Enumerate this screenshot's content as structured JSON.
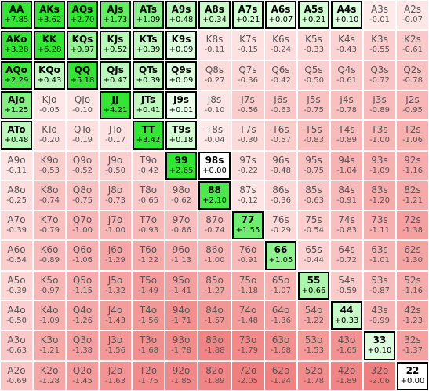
{
  "chart_data": {
    "type": "heatmap",
    "title": "",
    "ranks": [
      "A",
      "K",
      "Q",
      "J",
      "T",
      "9",
      "8",
      "7",
      "6",
      "5",
      "4",
      "3",
      "2"
    ],
    "color_scale": {
      "positive_max": "#33e633",
      "positive_min": "#ecffec",
      "zero": "#ffffff",
      "negative_min": "#ffeaea",
      "negative_max": "#f07f7f"
    },
    "rows": [
      [
        {
          "hand": "AA",
          "ev": "+7.85"
        },
        {
          "hand": "AKs",
          "ev": "+3.62"
        },
        {
          "hand": "AQs",
          "ev": "+2.70"
        },
        {
          "hand": "AJs",
          "ev": "+1.73"
        },
        {
          "hand": "ATs",
          "ev": "+1.09"
        },
        {
          "hand": "A9s",
          "ev": "+0.48"
        },
        {
          "hand": "A8s",
          "ev": "+0.34"
        },
        {
          "hand": "A7s",
          "ev": "+0.21"
        },
        {
          "hand": "A6s",
          "ev": "+0.07"
        },
        {
          "hand": "A5s",
          "ev": "+0.21"
        },
        {
          "hand": "A4s",
          "ev": "+0.10"
        },
        {
          "hand": "A3s",
          "ev": "-0.01"
        },
        {
          "hand": "A2s",
          "ev": "-0.07"
        }
      ],
      [
        {
          "hand": "AKo",
          "ev": "+3.28"
        },
        {
          "hand": "KK",
          "ev": "+6.28"
        },
        {
          "hand": "KQs",
          "ev": "+0.97"
        },
        {
          "hand": "KJs",
          "ev": "+0.52"
        },
        {
          "hand": "KTs",
          "ev": "+0.39"
        },
        {
          "hand": "K9s",
          "ev": "+0.09"
        },
        {
          "hand": "K8s",
          "ev": "-0.11"
        },
        {
          "hand": "K7s",
          "ev": "-0.15"
        },
        {
          "hand": "K6s",
          "ev": "-0.24"
        },
        {
          "hand": "K5s",
          "ev": "-0.33"
        },
        {
          "hand": "K4s",
          "ev": "-0.43"
        },
        {
          "hand": "K3s",
          "ev": "-0.55"
        },
        {
          "hand": "K2s",
          "ev": "-0.61"
        }
      ],
      [
        {
          "hand": "AQo",
          "ev": "+2.29"
        },
        {
          "hand": "KQo",
          "ev": "+0.43"
        },
        {
          "hand": "QQ",
          "ev": "+5.18"
        },
        {
          "hand": "QJs",
          "ev": "+0.47"
        },
        {
          "hand": "QTs",
          "ev": "+0.39"
        },
        {
          "hand": "Q9s",
          "ev": "+0.09"
        },
        {
          "hand": "Q8s",
          "ev": "-0.27"
        },
        {
          "hand": "Q7s",
          "ev": "-0.36"
        },
        {
          "hand": "Q6s",
          "ev": "-0.42"
        },
        {
          "hand": "Q5s",
          "ev": "-0.50"
        },
        {
          "hand": "Q4s",
          "ev": "-0.61"
        },
        {
          "hand": "Q3s",
          "ev": "-0.72"
        },
        {
          "hand": "Q2s",
          "ev": "-0.78"
        }
      ],
      [
        {
          "hand": "AJo",
          "ev": "+1.25"
        },
        {
          "hand": "KJo",
          "ev": "-0.05"
        },
        {
          "hand": "QJo",
          "ev": "-0.10"
        },
        {
          "hand": "JJ",
          "ev": "+4.21"
        },
        {
          "hand": "JTs",
          "ev": "+0.41"
        },
        {
          "hand": "J9s",
          "ev": "+0.01"
        },
        {
          "hand": "J8s",
          "ev": "-0.10"
        },
        {
          "hand": "J7s",
          "ev": "-0.56"
        },
        {
          "hand": "J6s",
          "ev": "-0.63"
        },
        {
          "hand": "J5s",
          "ev": "-0.75"
        },
        {
          "hand": "J4s",
          "ev": "-0.78"
        },
        {
          "hand": "J3s",
          "ev": "-0.89"
        },
        {
          "hand": "J2s",
          "ev": "-0.95"
        }
      ],
      [
        {
          "hand": "ATo",
          "ev": "+0.48"
        },
        {
          "hand": "KTo",
          "ev": "-0.20"
        },
        {
          "hand": "QTo",
          "ev": "-0.19"
        },
        {
          "hand": "JTo",
          "ev": "-0.17"
        },
        {
          "hand": "TT",
          "ev": "+3.42"
        },
        {
          "hand": "T9s",
          "ev": "+0.18"
        },
        {
          "hand": "T8s",
          "ev": "-0.04"
        },
        {
          "hand": "T7s",
          "ev": "-0.30"
        },
        {
          "hand": "T6s",
          "ev": "-0.57"
        },
        {
          "hand": "T5s",
          "ev": "-0.83"
        },
        {
          "hand": "T4s",
          "ev": "-0.89"
        },
        {
          "hand": "T3s",
          "ev": "-1.00"
        },
        {
          "hand": "T2s",
          "ev": "-1.06"
        }
      ],
      [
        {
          "hand": "A9o",
          "ev": "-0.11"
        },
        {
          "hand": "K9o",
          "ev": "-0.53"
        },
        {
          "hand": "Q9o",
          "ev": "-0.52"
        },
        {
          "hand": "J9o",
          "ev": "-0.50"
        },
        {
          "hand": "T9o",
          "ev": "-0.42"
        },
        {
          "hand": "99",
          "ev": "+2.65"
        },
        {
          "hand": "98s",
          "ev": "+0.00"
        },
        {
          "hand": "97s",
          "ev": "-0.22"
        },
        {
          "hand": "96s",
          "ev": "-0.48"
        },
        {
          "hand": "95s",
          "ev": "-0.75"
        },
        {
          "hand": "94s",
          "ev": "-1.04"
        },
        {
          "hand": "93s",
          "ev": "-1.09"
        },
        {
          "hand": "92s",
          "ev": "-1.16"
        }
      ],
      [
        {
          "hand": "A8o",
          "ev": "-0.25"
        },
        {
          "hand": "K8o",
          "ev": "-0.74"
        },
        {
          "hand": "Q8o",
          "ev": "-0.75"
        },
        {
          "hand": "J8o",
          "ev": "-0.73"
        },
        {
          "hand": "T8o",
          "ev": "-0.65"
        },
        {
          "hand": "98o",
          "ev": "-0.62"
        },
        {
          "hand": "88",
          "ev": "+2.10"
        },
        {
          "hand": "87s",
          "ev": "-0.12"
        },
        {
          "hand": "86s",
          "ev": "-0.36"
        },
        {
          "hand": "85s",
          "ev": "-0.63"
        },
        {
          "hand": "84s",
          "ev": "-0.91"
        },
        {
          "hand": "83s",
          "ev": "-1.20"
        },
        {
          "hand": "82s",
          "ev": "-1.21"
        }
      ],
      [
        {
          "hand": "A7o",
          "ev": "-0.39"
        },
        {
          "hand": "K7o",
          "ev": "-0.79"
        },
        {
          "hand": "Q7o",
          "ev": "-1.00"
        },
        {
          "hand": "J7o",
          "ev": "-1.00"
        },
        {
          "hand": "T7o",
          "ev": "-0.93"
        },
        {
          "hand": "97o",
          "ev": "-0.86"
        },
        {
          "hand": "87o",
          "ev": "-0.74"
        },
        {
          "hand": "77",
          "ev": "+1.55"
        },
        {
          "hand": "76s",
          "ev": "-0.29"
        },
        {
          "hand": "75s",
          "ev": "-0.54"
        },
        {
          "hand": "74s",
          "ev": "-0.83"
        },
        {
          "hand": "73s",
          "ev": "-1.11"
        },
        {
          "hand": "72s",
          "ev": "-1.38"
        }
      ],
      [
        {
          "hand": "A6o",
          "ev": "-0.54"
        },
        {
          "hand": "K6o",
          "ev": "-0.89"
        },
        {
          "hand": "Q6o",
          "ev": "-1.06"
        },
        {
          "hand": "J6o",
          "ev": "-1.29"
        },
        {
          "hand": "T6o",
          "ev": "-1.22"
        },
        {
          "hand": "96o",
          "ev": "-1.13"
        },
        {
          "hand": "86o",
          "ev": "-1.00"
        },
        {
          "hand": "76o",
          "ev": "-0.91"
        },
        {
          "hand": "66",
          "ev": "+1.05"
        },
        {
          "hand": "65s",
          "ev": "-0.44"
        },
        {
          "hand": "64s",
          "ev": "-0.72"
        },
        {
          "hand": "63s",
          "ev": "-1.01"
        },
        {
          "hand": "62s",
          "ev": "-1.30"
        }
      ],
      [
        {
          "hand": "A5o",
          "ev": "-0.39"
        },
        {
          "hand": "K5o",
          "ev": "-0.97"
        },
        {
          "hand": "Q5o",
          "ev": "-1.15"
        },
        {
          "hand": "J5o",
          "ev": "-1.32"
        },
        {
          "hand": "T5o",
          "ev": "-1.49"
        },
        {
          "hand": "95o",
          "ev": "-1.41"
        },
        {
          "hand": "85o",
          "ev": "-1.27"
        },
        {
          "hand": "75o",
          "ev": "-1.18"
        },
        {
          "hand": "65o",
          "ev": "-1.07"
        },
        {
          "hand": "55",
          "ev": "+0.66"
        },
        {
          "hand": "54s",
          "ev": "-0.59"
        },
        {
          "hand": "53s",
          "ev": "-0.87"
        },
        {
          "hand": "52s",
          "ev": "-1.16"
        }
      ],
      [
        {
          "hand": "A4o",
          "ev": "-0.50"
        },
        {
          "hand": "K4o",
          "ev": "-1.09"
        },
        {
          "hand": "Q4o",
          "ev": "-1.26"
        },
        {
          "hand": "J4o",
          "ev": "-1.43"
        },
        {
          "hand": "T4o",
          "ev": "-1.56"
        },
        {
          "hand": "94o",
          "ev": "-1.71"
        },
        {
          "hand": "84o",
          "ev": "-1.57"
        },
        {
          "hand": "74o",
          "ev": "-1.48"
        },
        {
          "hand": "64o",
          "ev": "-1.36"
        },
        {
          "hand": "54o",
          "ev": "-1.22"
        },
        {
          "hand": "44",
          "ev": "+0.33"
        },
        {
          "hand": "43s",
          "ev": "-0.99"
        },
        {
          "hand": "42s",
          "ev": "-1.23"
        }
      ],
      [
        {
          "hand": "A3o",
          "ev": "-0.63"
        },
        {
          "hand": "K3o",
          "ev": "-1.21"
        },
        {
          "hand": "Q3o",
          "ev": "-1.38"
        },
        {
          "hand": "J3o",
          "ev": "-1.56"
        },
        {
          "hand": "T3o",
          "ev": "-1.68"
        },
        {
          "hand": "93o",
          "ev": "-1.78"
        },
        {
          "hand": "83o",
          "ev": "-1.88"
        },
        {
          "hand": "73o",
          "ev": "-1.79"
        },
        {
          "hand": "63o",
          "ev": "-1.68"
        },
        {
          "hand": "53o",
          "ev": "-1.53"
        },
        {
          "hand": "43o",
          "ev": "-1.65"
        },
        {
          "hand": "33",
          "ev": "+0.10"
        },
        {
          "hand": "32s",
          "ev": "-1.37"
        }
      ],
      [
        {
          "hand": "A2o",
          "ev": "-0.69"
        },
        {
          "hand": "K2o",
          "ev": "-1.28"
        },
        {
          "hand": "Q2o",
          "ev": "-1.45"
        },
        {
          "hand": "J2o",
          "ev": "-1.63"
        },
        {
          "hand": "T2o",
          "ev": "-1.75"
        },
        {
          "hand": "92o",
          "ev": "-1.85"
        },
        {
          "hand": "82o",
          "ev": "-1.89"
        },
        {
          "hand": "72o",
          "ev": "-2.05"
        },
        {
          "hand": "62o",
          "ev": "-1.94"
        },
        {
          "hand": "52o",
          "ev": "-1.78"
        },
        {
          "hand": "42o",
          "ev": "-1.89"
        },
        {
          "hand": "32o",
          "ev": "-2.06"
        },
        {
          "hand": "22",
          "ev": "+0.00"
        }
      ]
    ]
  }
}
